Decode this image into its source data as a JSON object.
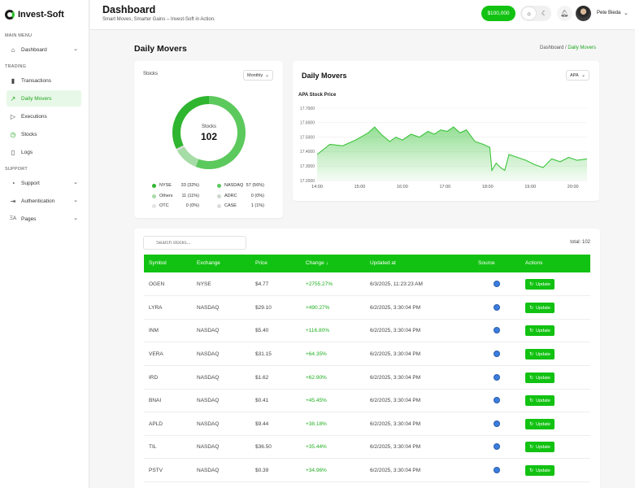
{
  "app": {
    "name": "Invest-Soft"
  },
  "sidebar": {
    "sections": [
      {
        "title": "MAIN MENU",
        "items": [
          {
            "label": "Dashboard",
            "icon": "home-icon",
            "chevron": true
          }
        ]
      },
      {
        "title": "TRADING",
        "items": [
          {
            "label": "Transactions",
            "icon": "bar-chart-icon"
          },
          {
            "label": "Daily Movers",
            "icon": "trend-up-icon",
            "active": true
          },
          {
            "label": "Executions",
            "icon": "play-icon"
          },
          {
            "label": "Stocks",
            "icon": "clock-icon"
          },
          {
            "label": "Logs",
            "icon": "file-icon"
          }
        ]
      },
      {
        "title": "SUPPORT",
        "items": [
          {
            "label": "Support",
            "icon": "pie-icon",
            "chevron": true
          },
          {
            "label": "Authentication",
            "icon": "login-icon",
            "chevron": true
          },
          {
            "label": "Pages",
            "icon": "translate-icon",
            "chevron": true
          }
        ]
      }
    ]
  },
  "header": {
    "title": "Dashboard",
    "subtitle": "Smart Moves, Smarter Gains – Invest-Soft in Action.",
    "balance": "$100,000",
    "user_name": "Pete Bieda"
  },
  "page": {
    "title": "Daily Movers",
    "breadcrumb": {
      "parent": "Dashboard",
      "separator": "/",
      "current": "Daily Movers"
    }
  },
  "stocks_card": {
    "label": "Stocks",
    "period": "Monthly",
    "center_label": "Stocks",
    "center_value": "102",
    "legend": [
      {
        "name": "NYSE",
        "value": "33 (32%)",
        "count": 33,
        "color": "#2fb52f"
      },
      {
        "name": "NASDAQ",
        "value": "57 (56%)",
        "count": 57,
        "color": "#5cc95c"
      },
      {
        "name": "Others",
        "value": "11 (11%)",
        "count": 11,
        "color": "#a6dca6"
      },
      {
        "name": "ADRC",
        "value": "0 (0%)",
        "count": 0,
        "color": "#cfd8cf"
      },
      {
        "name": "OTC",
        "value": "0 (0%)",
        "count": 0,
        "color": "#e3e3e3"
      },
      {
        "name": "CASE",
        "value": "1 (1%)",
        "count": 1,
        "color": "#dcdcdc"
      }
    ]
  },
  "chart_card": {
    "title": "Daily Movers",
    "symbol": "APA"
  },
  "chart_data": {
    "type": "area",
    "title": "APA Stock Price",
    "xlabel": "",
    "ylabel": "",
    "x_ticks": [
      "14:00",
      "15:00",
      "16:00",
      "17:00",
      "18:00",
      "19:00",
      "20:00"
    ],
    "y_ticks": [
      "17.7000",
      "17.6000",
      "17.5000",
      "17.4000",
      "17.3000",
      "17.2000"
    ],
    "ylim": [
      17.2,
      17.7
    ],
    "xlim": [
      14.0,
      20.33
    ],
    "grid": true,
    "color": "#3cc43c",
    "series": [
      {
        "x": [
          14.0,
          14.3,
          14.6,
          14.9,
          15.2,
          15.35,
          15.5,
          15.7,
          15.85,
          16.0,
          16.2,
          16.4,
          16.6,
          16.75,
          16.9,
          17.05,
          17.2,
          17.35,
          17.5,
          17.7,
          17.9,
          18.05,
          18.1,
          18.2,
          18.3,
          18.4,
          18.5,
          18.7,
          18.9,
          19.1,
          19.3,
          19.5,
          19.7,
          19.9,
          20.1,
          20.33
        ],
        "y": [
          17.38,
          17.45,
          17.44,
          17.48,
          17.53,
          17.57,
          17.52,
          17.47,
          17.5,
          17.48,
          17.52,
          17.5,
          17.54,
          17.52,
          17.55,
          17.54,
          17.57,
          17.53,
          17.55,
          17.47,
          17.45,
          17.43,
          17.27,
          17.32,
          17.29,
          17.27,
          17.38,
          17.36,
          17.34,
          17.31,
          17.29,
          17.35,
          17.33,
          17.36,
          17.34,
          17.35
        ]
      }
    ]
  },
  "table": {
    "search_placeholder": "Search stocks...",
    "total_label": "total:",
    "total_value": "102",
    "columns": [
      "Symbol",
      "Exchange",
      "Price",
      "Change ↓",
      "Updated at",
      "Source",
      "Actions"
    ],
    "action_label": "Update",
    "rows": [
      {
        "symbol": "OGEN",
        "exchange": "NYSE",
        "price": "$4.77",
        "change": "+2755.27%",
        "updated": "6/3/2025, 11:23:23 AM"
      },
      {
        "symbol": "LYRA",
        "exchange": "NASDAQ",
        "price": "$29.10",
        "change": "+490.27%",
        "updated": "6/2/2025, 3:30:04 PM"
      },
      {
        "symbol": "INM",
        "exchange": "NASDAQ",
        "price": "$5.40",
        "change": "+116.80%",
        "updated": "6/2/2025, 3:30:04 PM"
      },
      {
        "symbol": "VERA",
        "exchange": "NASDAQ",
        "price": "$31.15",
        "change": "+64.35%",
        "updated": "6/2/2025, 3:30:04 PM"
      },
      {
        "symbol": "IRD",
        "exchange": "NASDAQ",
        "price": "$1.62",
        "change": "+62.90%",
        "updated": "6/2/2025, 3:30:04 PM"
      },
      {
        "symbol": "BNAI",
        "exchange": "NASDAQ",
        "price": "$0.41",
        "change": "+45.45%",
        "updated": "6/2/2025, 3:30:04 PM"
      },
      {
        "symbol": "APLD",
        "exchange": "NASDAQ",
        "price": "$9.44",
        "change": "+38.18%",
        "updated": "6/2/2025, 3:30:04 PM"
      },
      {
        "symbol": "TIL",
        "exchange": "NASDAQ",
        "price": "$36.50",
        "change": "+35.44%",
        "updated": "6/2/2025, 3:30:04 PM"
      },
      {
        "symbol": "PSTV",
        "exchange": "NASDAQ",
        "price": "$0.39",
        "change": "+34.96%",
        "updated": "6/2/2025, 3:30:04 PM"
      }
    ]
  }
}
